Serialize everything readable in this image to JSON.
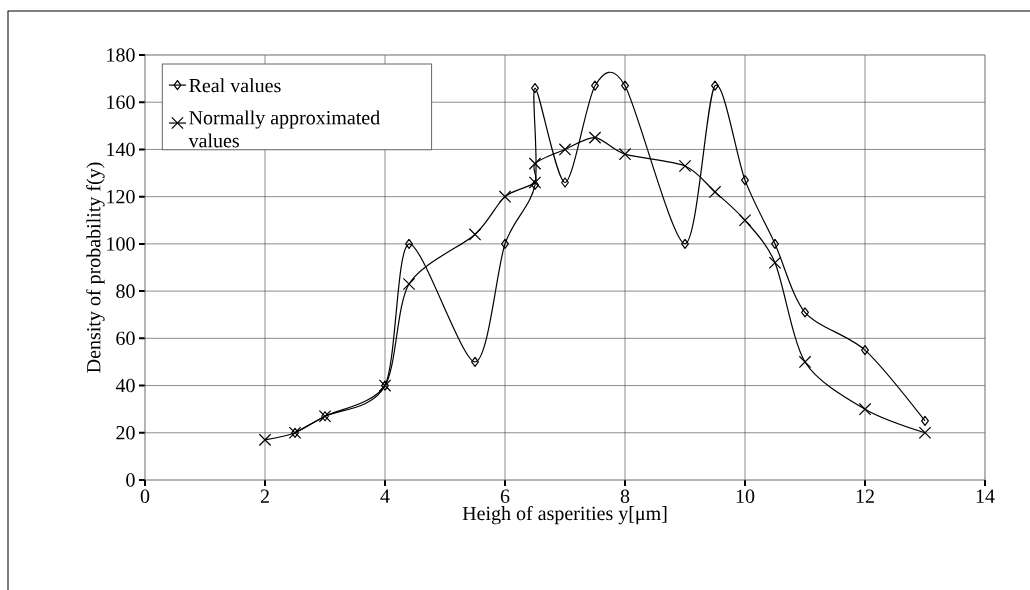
{
  "chart_data": {
    "type": "line",
    "xlabel": "Heigh of asperities y[μm]",
    "ylabel": "Density of probability f(y)",
    "xlim": [
      0,
      14
    ],
    "xticks": [
      0,
      2,
      4,
      6,
      8,
      10,
      12,
      14
    ],
    "ylim": [
      0,
      180
    ],
    "yticks": [
      0,
      20,
      40,
      60,
      80,
      100,
      120,
      140,
      160,
      180
    ],
    "grid": true,
    "legend": "top left",
    "line_style": "solid",
    "series": [
      {
        "name": "Real values",
        "color": "#000000",
        "marker": "diamond",
        "x": [
          2.5,
          3,
          4,
          4.4,
          5.5,
          6,
          6.5,
          6.5,
          7,
          7.5,
          8,
          9,
          9.5,
          10,
          10.5,
          11,
          12,
          13
        ],
        "values": [
          20,
          27,
          40,
          100,
          50,
          100,
          125,
          166,
          126,
          167,
          167,
          100,
          167,
          127,
          100,
          71,
          55,
          25
        ]
      },
      {
        "name": "Normally approximated values",
        "color": "#000000",
        "marker": "cross",
        "x": [
          2,
          2.5,
          3,
          4,
          4.4,
          5.5,
          6,
          6.5,
          6.5,
          7,
          7.5,
          8,
          9,
          9.5,
          10,
          10.5,
          11,
          12,
          13
        ],
        "values": [
          17,
          20,
          27,
          40,
          83,
          104,
          120,
          126,
          134,
          140,
          145,
          138,
          133,
          122,
          110,
          92,
          50,
          30,
          20
        ]
      }
    ]
  }
}
